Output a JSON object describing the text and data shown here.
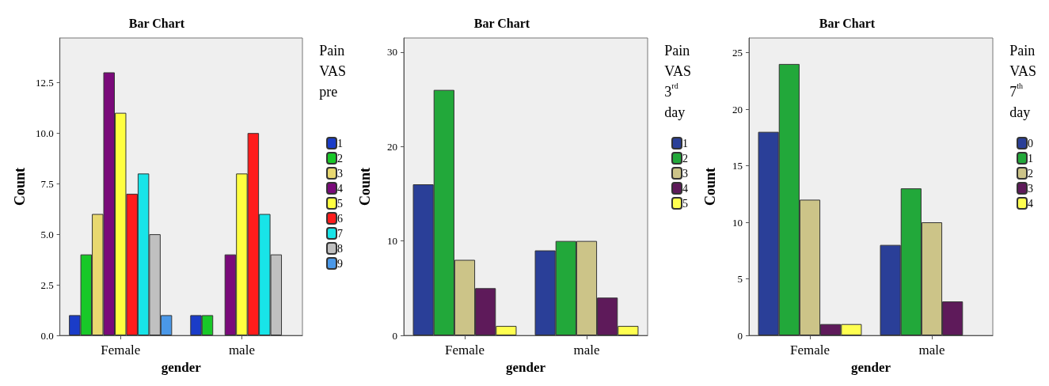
{
  "chart_data": [
    {
      "type": "bar",
      "title": "Bar Chart",
      "xlabel": "gender",
      "ylabel": "Count",
      "legend_title": "Pain VAS pre",
      "categories": [
        "Female",
        "male"
      ],
      "ylim": [
        0,
        14.7
      ],
      "yticks": [
        {
          "value": 0,
          "label": "0.0"
        },
        {
          "value": 2.5,
          "label": "2.5"
        },
        {
          "value": 5,
          "label": "5.0"
        },
        {
          "value": 7.5,
          "label": "7.5"
        },
        {
          "value": 10,
          "label": "10.0"
        },
        {
          "value": 12.5,
          "label": "12.5"
        }
      ],
      "grid": false,
      "legend": "right",
      "series": [
        {
          "name": "1",
          "color": "#1a3cc8",
          "values": [
            1,
            1
          ]
        },
        {
          "name": "2",
          "color": "#18c828",
          "values": [
            4,
            1
          ]
        },
        {
          "name": "3",
          "color": "#e8d870",
          "values": [
            6,
            null
          ]
        },
        {
          "name": "4",
          "color": "#7a0a7a",
          "values": [
            13,
            4
          ]
        },
        {
          "name": "5",
          "color": "#ffff40",
          "values": [
            11,
            8
          ]
        },
        {
          "name": "6",
          "color": "#ff1c1c",
          "values": [
            7,
            10
          ]
        },
        {
          "name": "7",
          "color": "#18e4e8",
          "values": [
            8,
            6
          ]
        },
        {
          "name": "8",
          "color": "#c0c0c0",
          "values": [
            5,
            4
          ]
        },
        {
          "name": "9",
          "color": "#4a98e8",
          "values": [
            1,
            null
          ]
        }
      ]
    },
    {
      "type": "bar",
      "title": "Bar Chart",
      "xlabel": "gender",
      "ylabel": "Count",
      "legend_title": "Pain VAS 3$^{rd}$ day",
      "categories": [
        "Female",
        "male"
      ],
      "ylim": [
        0,
        31.5
      ],
      "yticks": [
        0,
        10,
        20,
        30
      ],
      "grid": false,
      "legend": "right",
      "series": [
        {
          "name": "1",
          "color": "#2a3f98",
          "values": [
            16,
            9
          ]
        },
        {
          "name": "2",
          "color": "#22a83a",
          "values": [
            26,
            10
          ]
        },
        {
          "name": "3",
          "color": "#ccc488",
          "values": [
            8,
            10
          ]
        },
        {
          "name": "4",
          "color": "#5e1a5a",
          "values": [
            5,
            4
          ]
        },
        {
          "name": "5",
          "color": "#ffff50",
          "values": [
            1,
            1
          ]
        }
      ]
    },
    {
      "type": "bar",
      "title": "Bar Chart",
      "xlabel": "gender",
      "ylabel": "Count",
      "legend_title": "Pain VAS 7$^{th}$ day",
      "categories": [
        "Female",
        "male"
      ],
      "ylim": [
        0,
        26.3
      ],
      "yticks": [
        0,
        5,
        10,
        15,
        20,
        25
      ],
      "grid": false,
      "legend": "right",
      "series": [
        {
          "name": "0",
          "color": "#2a3f98",
          "values": [
            18,
            8
          ]
        },
        {
          "name": "1",
          "color": "#22a83a",
          "values": [
            24,
            13
          ]
        },
        {
          "name": "2",
          "color": "#ccc488",
          "values": [
            12,
            10
          ]
        },
        {
          "name": "3",
          "color": "#5e1a5a",
          "values": [
            1,
            3
          ]
        },
        {
          "name": "4",
          "color": "#ffff50",
          "values": [
            1,
            null
          ]
        }
      ]
    }
  ]
}
